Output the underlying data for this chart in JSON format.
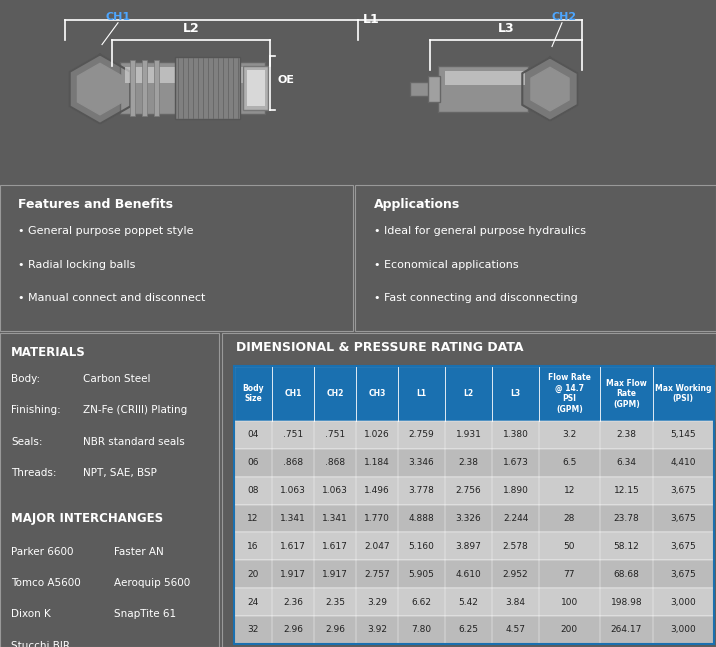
{
  "bg_color": "#5c5c5c",
  "black_bg": "#0a0a0a",
  "dark_gray": "#636363",
  "white": "#ffffff",
  "blue_header": "#1a70b0",
  "light_blue": "#2288cc",
  "table_row_light": "#cccccc",
  "table_row_dark": "#bbbbbb",
  "label_color": "#4da6ff",
  "features_title": "Features and Benefits",
  "features": [
    "General purpose poppet style",
    "Radial locking balls",
    "Manual connect and disconnect"
  ],
  "applications_title": "Applications",
  "applications": [
    "Ideal for general purpose hydraulics",
    "Economical applications",
    "Fast connecting and disconnecting"
  ],
  "materials_title": "MATERIALS",
  "materials": [
    [
      "Body:",
      "Carbon Steel"
    ],
    [
      "Finishing:",
      "ZN-Fe (CRIII) Plating"
    ],
    [
      "Seals:",
      "NBR standard seals"
    ],
    [
      "Threads:",
      "NPT, SAE, BSP"
    ]
  ],
  "interchanges_title": "MAJOR INTERCHANGES",
  "interchanges": [
    [
      "Parker 6600",
      "Faster AN"
    ],
    [
      "Tomco A5600",
      "Aeroquip 5600"
    ],
    [
      "Dixon K",
      "SnapTite 61"
    ],
    [
      "Stucchi BIR",
      ""
    ]
  ],
  "dim_title": "DIMENSIONAL & PRESSURE RATING DATA",
  "col_headers": [
    "Body\nSize",
    "CH1",
    "CH2",
    "CH3",
    "L1",
    "L2",
    "L3",
    "Flow Rate\n@ 14.7\nPSI\n(GPM)",
    "Max Flow\nRate\n(GPM)",
    "Max Working\n(PSI)"
  ],
  "table_data": [
    [
      "04",
      ".751",
      ".751",
      "1.026",
      "2.759",
      "1.931",
      "1.380",
      "3.2",
      "2.38",
      "5,145"
    ],
    [
      "06",
      ".868",
      ".868",
      "1.184",
      "3.346",
      "2.38",
      "1.673",
      "6.5",
      "6.34",
      "4,410"
    ],
    [
      "08",
      "1.063",
      "1.063",
      "1.496",
      "3.778",
      "2.756",
      "1.890",
      "12",
      "12.15",
      "3,675"
    ],
    [
      "12",
      "1.341",
      "1.341",
      "1.770",
      "4.888",
      "3.326",
      "2.244",
      "28",
      "23.78",
      "3,675"
    ],
    [
      "16",
      "1.617",
      "1.617",
      "2.047",
      "5.160",
      "3.897",
      "2.578",
      "50",
      "58.12",
      "3,675"
    ],
    [
      "20",
      "1.917",
      "1.917",
      "2.757",
      "5.905",
      "4.610",
      "2.952",
      "77",
      "68.68",
      "3,675"
    ],
    [
      "24",
      "2.36",
      "2.35",
      "3.29",
      "6.62",
      "5.42",
      "3.84",
      "100",
      "198.98",
      "3,000"
    ],
    [
      "32",
      "2.96",
      "2.96",
      "3.92",
      "7.80",
      "6.25",
      "4.57",
      "200",
      "264.17",
      "3,000"
    ]
  ]
}
